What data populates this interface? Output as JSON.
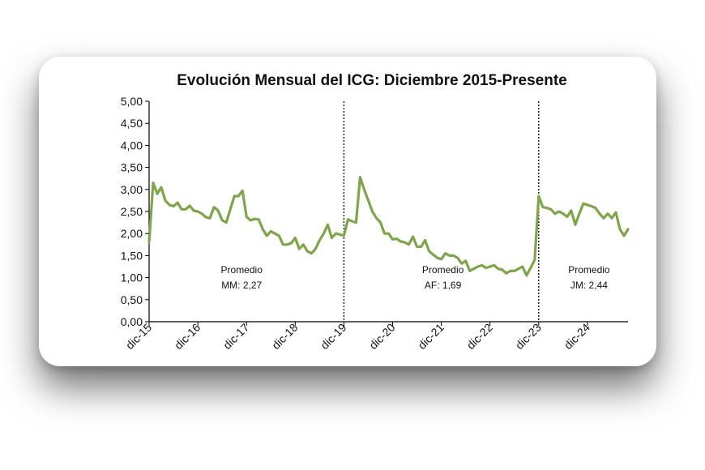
{
  "colors": {
    "line": "#7ea54a",
    "axis": "#000000",
    "divider": "#000000"
  },
  "chart_data": {
    "type": "line",
    "title": "Evolución Mensual del ICG: Diciembre 2015-Presente",
    "xlabel": "",
    "ylabel": "",
    "ylim": [
      0,
      5
    ],
    "y_ticks": [
      "0,00",
      "0,50",
      "1,00",
      "1,50",
      "2,00",
      "2,50",
      "3,00",
      "3,50",
      "4,00",
      "4,50",
      "5,00"
    ],
    "x_tick_labels": [
      "dic-15",
      "dic-16",
      "dic-17",
      "dic-18",
      "dic-19",
      "dic-20",
      "dic-21",
      "dic-22",
      "dic-23",
      "dic-24"
    ],
    "x_range_months": [
      0,
      118
    ],
    "period_dividers": [
      48,
      96
    ],
    "annotations": [
      {
        "text": "Promedio",
        "subtext": "MM: 2,27"
      },
      {
        "text": "Promedio",
        "subtext": "AF: 1,69"
      },
      {
        "text": "Promedio",
        "subtext": "JM: 2,44"
      }
    ],
    "series": [
      {
        "name": "ICG",
        "x": [
          0,
          1,
          2,
          3,
          4,
          5,
          6,
          7,
          8,
          9,
          10,
          11,
          12,
          13,
          14,
          15,
          16,
          17,
          18,
          19,
          20,
          21,
          22,
          23,
          24,
          25,
          26,
          27,
          28,
          29,
          30,
          31,
          32,
          33,
          34,
          35,
          36,
          37,
          38,
          39,
          40,
          41,
          42,
          43,
          44,
          45,
          46,
          47,
          48,
          49,
          50,
          51,
          52,
          53,
          54,
          55,
          56,
          57,
          58,
          59,
          60,
          61,
          62,
          63,
          64,
          65,
          66,
          67,
          68,
          69,
          70,
          71,
          72,
          73,
          74,
          75,
          76,
          77,
          78,
          79,
          80,
          81,
          82,
          83,
          84,
          85,
          86,
          87,
          88,
          89,
          90,
          91,
          92,
          93,
          94,
          95,
          96,
          97,
          98,
          99,
          100,
          101,
          102,
          103,
          104,
          105,
          106,
          107,
          108,
          109,
          110,
          111,
          112,
          113,
          114,
          115,
          116,
          117,
          118
        ],
        "values": [
          1.8,
          3.15,
          2.9,
          3.05,
          2.75,
          2.65,
          2.62,
          2.7,
          2.55,
          2.55,
          2.63,
          2.52,
          2.5,
          2.45,
          2.37,
          2.35,
          2.6,
          2.52,
          2.3,
          2.25,
          2.55,
          2.85,
          2.85,
          2.97,
          2.38,
          2.3,
          2.33,
          2.32,
          2.1,
          1.95,
          2.05,
          2.0,
          1.95,
          1.75,
          1.75,
          1.78,
          1.9,
          1.65,
          1.75,
          1.6,
          1.55,
          1.65,
          1.85,
          2.0,
          2.2,
          1.9,
          2.0,
          1.98,
          1.95,
          2.32,
          2.28,
          2.25,
          3.28,
          3.0,
          2.75,
          2.5,
          2.35,
          2.25,
          2.0,
          2.0,
          1.87,
          1.88,
          1.82,
          1.8,
          1.75,
          1.93,
          1.7,
          1.7,
          1.85,
          1.6,
          1.52,
          1.45,
          1.42,
          1.55,
          1.5,
          1.5,
          1.45,
          1.32,
          1.38,
          1.15,
          1.2,
          1.25,
          1.28,
          1.22,
          1.25,
          1.28,
          1.2,
          1.18,
          1.1,
          1.15,
          1.15,
          1.2,
          1.25,
          1.05,
          1.22,
          1.4,
          2.85,
          2.6,
          2.58,
          2.55,
          2.45,
          2.5,
          2.45,
          2.38,
          2.52,
          2.2,
          2.45,
          2.68,
          2.65,
          2.62,
          2.58,
          2.45,
          2.35,
          2.45,
          2.35,
          2.48,
          2.1,
          1.95,
          2.1
        ]
      }
    ]
  }
}
